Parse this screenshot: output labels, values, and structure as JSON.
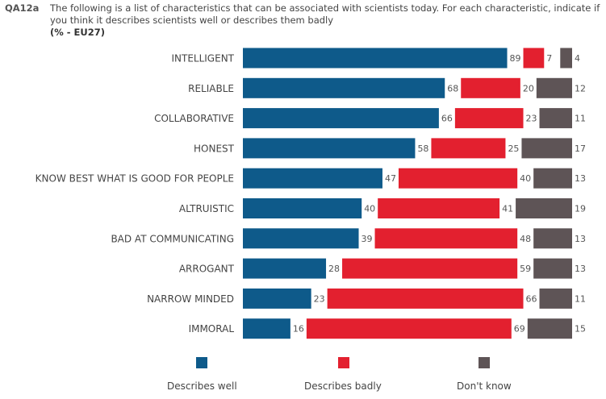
{
  "header": {
    "code": "QA12a",
    "question": "The following is a list of characteristics that can be associated with scientists today. For each characteristic, indicate if you think it describes scientists well or describes them badly",
    "base": "(% - EU27)"
  },
  "colors": {
    "well": "#0e5a8a",
    "badly": "#e3202f",
    "dont_know": "#5e5456"
  },
  "chart_data": {
    "type": "bar",
    "stacked": true,
    "orientation": "horizontal",
    "categories": [
      "INTELLIGENT",
      "RELIABLE",
      "COLLABORATIVE",
      "HONEST",
      "KNOW BEST WHAT IS GOOD FOR PEOPLE",
      "ALTRUISTIC",
      "BAD AT COMMUNICATING",
      "ARROGANT",
      "NARROW MINDED",
      "IMMORAL"
    ],
    "series": [
      {
        "name": "Describes well",
        "values": [
          89,
          68,
          66,
          58,
          47,
          40,
          39,
          28,
          23,
          16
        ]
      },
      {
        "name": "Describes badly",
        "values": [
          7,
          20,
          23,
          25,
          40,
          41,
          48,
          59,
          66,
          69
        ]
      },
      {
        "name": "Don't know",
        "values": [
          4,
          12,
          11,
          17,
          13,
          19,
          13,
          13,
          11,
          15
        ]
      }
    ],
    "legend_position": "bottom",
    "grid": false
  }
}
